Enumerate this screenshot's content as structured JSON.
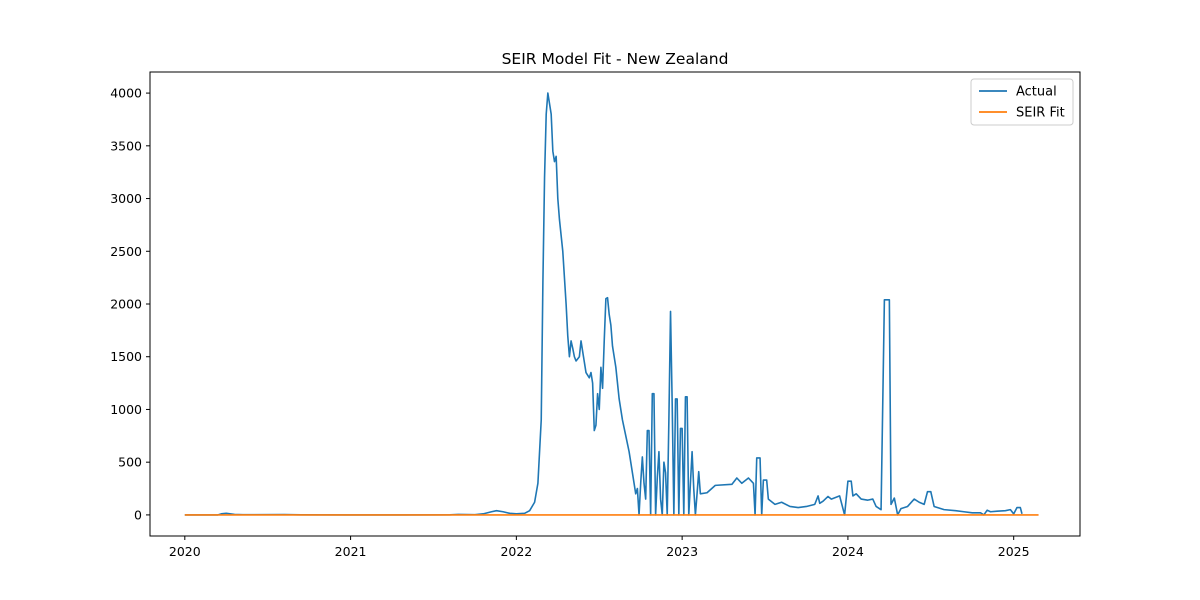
{
  "chart_data": {
    "type": "line",
    "title": "SEIR Model Fit - New Zealand",
    "xlabel": "",
    "ylabel": "",
    "x_axis": {
      "kind": "year",
      "ticks": [
        2020,
        2021,
        2022,
        2023,
        2024,
        2025
      ],
      "tick_labels": [
        "2020",
        "2021",
        "2022",
        "2023",
        "2024",
        "2025"
      ],
      "range": [
        2019.79,
        2025.4
      ]
    },
    "y_axis": {
      "ticks": [
        0,
        500,
        1000,
        1500,
        2000,
        2500,
        3000,
        3500,
        4000
      ],
      "tick_labels": [
        "0",
        "500",
        "1000",
        "1500",
        "2000",
        "2500",
        "3000",
        "3500",
        "4000"
      ],
      "range": [
        -200,
        4200
      ]
    },
    "grid": false,
    "legend": {
      "position": "top-right",
      "entries": [
        "Actual",
        "SEIR Fit"
      ]
    },
    "series": [
      {
        "name": "Actual",
        "color": "#1f77b4",
        "points": [
          [
            2020.0,
            0
          ],
          [
            2020.2,
            0
          ],
          [
            2020.22,
            10
          ],
          [
            2020.25,
            15
          ],
          [
            2020.3,
            5
          ],
          [
            2020.35,
            2
          ],
          [
            2020.6,
            3
          ],
          [
            2020.7,
            1
          ],
          [
            2021.0,
            0
          ],
          [
            2021.3,
            0
          ],
          [
            2021.6,
            1
          ],
          [
            2021.65,
            5
          ],
          [
            2021.7,
            3
          ],
          [
            2021.75,
            2
          ],
          [
            2021.8,
            10
          ],
          [
            2021.85,
            30
          ],
          [
            2021.88,
            40
          ],
          [
            2021.92,
            30
          ],
          [
            2021.96,
            15
          ],
          [
            2022.0,
            10
          ],
          [
            2022.05,
            15
          ],
          [
            2022.08,
            40
          ],
          [
            2022.11,
            120
          ],
          [
            2022.13,
            300
          ],
          [
            2022.15,
            900
          ],
          [
            2022.16,
            2200
          ],
          [
            2022.17,
            3200
          ],
          [
            2022.18,
            3800
          ],
          [
            2022.19,
            4000
          ],
          [
            2022.2,
            3900
          ],
          [
            2022.21,
            3800
          ],
          [
            2022.22,
            3450
          ],
          [
            2022.23,
            3350
          ],
          [
            2022.24,
            3400
          ],
          [
            2022.25,
            3000
          ],
          [
            2022.26,
            2800
          ],
          [
            2022.28,
            2500
          ],
          [
            2022.3,
            2000
          ],
          [
            2022.31,
            1700
          ],
          [
            2022.32,
            1500
          ],
          [
            2022.33,
            1650
          ],
          [
            2022.34,
            1580
          ],
          [
            2022.35,
            1500
          ],
          [
            2022.36,
            1460
          ],
          [
            2022.37,
            1480
          ],
          [
            2022.38,
            1500
          ],
          [
            2022.39,
            1650
          ],
          [
            2022.4,
            1550
          ],
          [
            2022.41,
            1450
          ],
          [
            2022.42,
            1350
          ],
          [
            2022.44,
            1300
          ],
          [
            2022.45,
            1350
          ],
          [
            2022.46,
            1250
          ],
          [
            2022.47,
            800
          ],
          [
            2022.48,
            850
          ],
          [
            2022.49,
            1150
          ],
          [
            2022.5,
            1000
          ],
          [
            2022.51,
            1400
          ],
          [
            2022.52,
            1200
          ],
          [
            2022.53,
            1650
          ],
          [
            2022.54,
            2050
          ],
          [
            2022.55,
            2060
          ],
          [
            2022.56,
            1900
          ],
          [
            2022.57,
            1800
          ],
          [
            2022.58,
            1600
          ],
          [
            2022.6,
            1400
          ],
          [
            2022.62,
            1100
          ],
          [
            2022.64,
            900
          ],
          [
            2022.66,
            750
          ],
          [
            2022.68,
            600
          ],
          [
            2022.7,
            400
          ],
          [
            2022.71,
            300
          ],
          [
            2022.72,
            200
          ],
          [
            2022.73,
            250
          ],
          [
            2022.74,
            0
          ],
          [
            2022.75,
            300
          ],
          [
            2022.76,
            550
          ],
          [
            2022.77,
            300
          ],
          [
            2022.78,
            150
          ],
          [
            2022.79,
            800
          ],
          [
            2022.8,
            800
          ],
          [
            2022.81,
            0
          ],
          [
            2022.82,
            1150
          ],
          [
            2022.83,
            1150
          ],
          [
            2022.84,
            0
          ],
          [
            2022.85,
            350
          ],
          [
            2022.86,
            600
          ],
          [
            2022.87,
            150
          ],
          [
            2022.88,
            0
          ],
          [
            2022.89,
            500
          ],
          [
            2022.9,
            400
          ],
          [
            2022.91,
            0
          ],
          [
            2022.92,
            900
          ],
          [
            2022.93,
            1930
          ],
          [
            2022.94,
            1050
          ],
          [
            2022.95,
            0
          ],
          [
            2022.96,
            1100
          ],
          [
            2022.97,
            1100
          ],
          [
            2022.98,
            0
          ],
          [
            2022.99,
            820
          ],
          [
            2023.0,
            820
          ],
          [
            2023.01,
            0
          ],
          [
            2023.02,
            1120
          ],
          [
            2023.03,
            1120
          ],
          [
            2023.04,
            0
          ],
          [
            2023.05,
            300
          ],
          [
            2023.06,
            600
          ],
          [
            2023.07,
            250
          ],
          [
            2023.08,
            0
          ],
          [
            2023.09,
            200
          ],
          [
            2023.1,
            410
          ],
          [
            2023.11,
            200
          ],
          [
            2023.15,
            210
          ],
          [
            2023.2,
            280
          ],
          [
            2023.3,
            290
          ],
          [
            2023.33,
            350
          ],
          [
            2023.36,
            300
          ],
          [
            2023.4,
            350
          ],
          [
            2023.43,
            300
          ],
          [
            2023.44,
            0
          ],
          [
            2023.45,
            540
          ],
          [
            2023.47,
            540
          ],
          [
            2023.48,
            0
          ],
          [
            2023.49,
            330
          ],
          [
            2023.51,
            330
          ],
          [
            2023.52,
            150
          ],
          [
            2023.56,
            100
          ],
          [
            2023.6,
            120
          ],
          [
            2023.65,
            80
          ],
          [
            2023.7,
            70
          ],
          [
            2023.75,
            80
          ],
          [
            2023.8,
            100
          ],
          [
            2023.82,
            180
          ],
          [
            2023.83,
            110
          ],
          [
            2023.85,
            130
          ],
          [
            2023.88,
            175
          ],
          [
            2023.9,
            150
          ],
          [
            2023.95,
            180
          ],
          [
            2023.98,
            0
          ],
          [
            2024.0,
            320
          ],
          [
            2024.02,
            320
          ],
          [
            2024.03,
            180
          ],
          [
            2024.05,
            200
          ],
          [
            2024.08,
            150
          ],
          [
            2024.12,
            140
          ],
          [
            2024.15,
            150
          ],
          [
            2024.17,
            80
          ],
          [
            2024.2,
            50
          ],
          [
            2024.22,
            2040
          ],
          [
            2024.25,
            2040
          ],
          [
            2024.26,
            100
          ],
          [
            2024.28,
            160
          ],
          [
            2024.3,
            0
          ],
          [
            2024.32,
            60
          ],
          [
            2024.36,
            80
          ],
          [
            2024.4,
            150
          ],
          [
            2024.43,
            120
          ],
          [
            2024.46,
            100
          ],
          [
            2024.48,
            220
          ],
          [
            2024.5,
            220
          ],
          [
            2024.52,
            80
          ],
          [
            2024.58,
            50
          ],
          [
            2024.65,
            40
          ],
          [
            2024.7,
            30
          ],
          [
            2024.75,
            20
          ],
          [
            2024.8,
            20
          ],
          [
            2024.82,
            0
          ],
          [
            2024.84,
            45
          ],
          [
            2024.86,
            30
          ],
          [
            2024.9,
            35
          ],
          [
            2024.95,
            40
          ],
          [
            2024.98,
            50
          ],
          [
            2025.0,
            10
          ],
          [
            2025.02,
            70
          ],
          [
            2025.04,
            70
          ],
          [
            2025.05,
            10
          ]
        ]
      },
      {
        "name": "SEIR Fit",
        "color": "#ff7f0e",
        "points": [
          [
            2020.0,
            0
          ],
          [
            2025.15,
            0
          ]
        ]
      }
    ]
  }
}
